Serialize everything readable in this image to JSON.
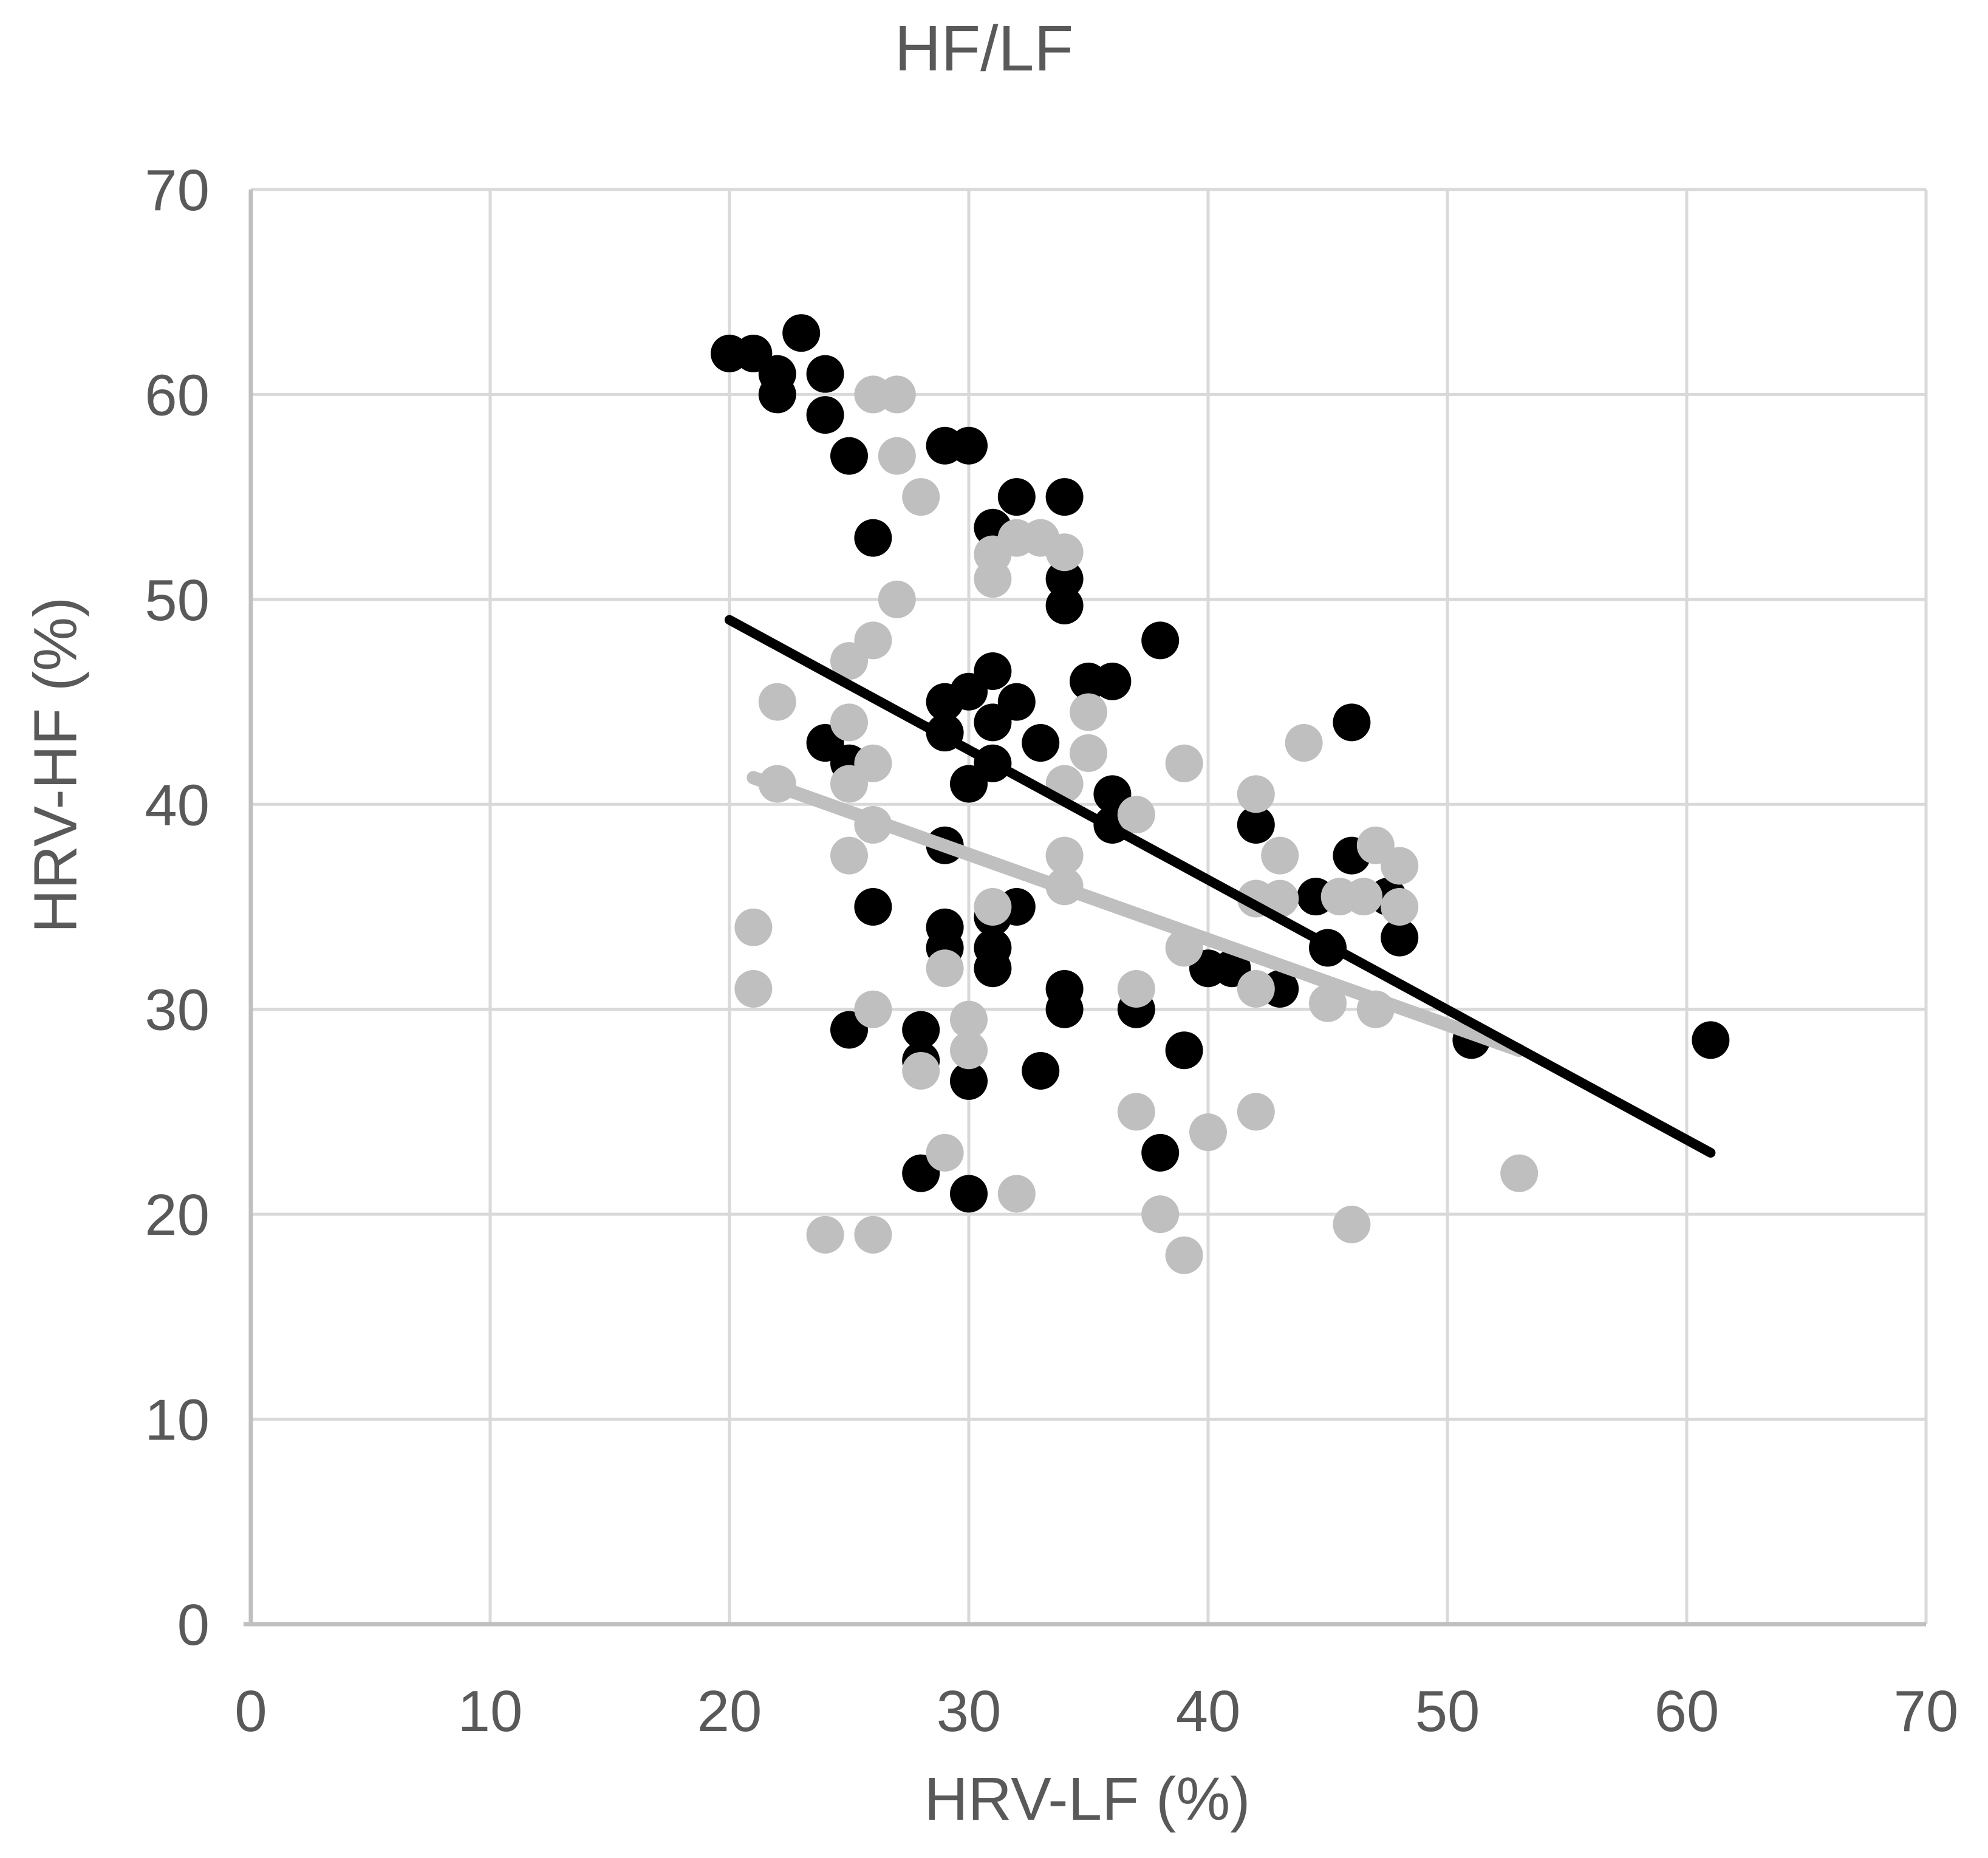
{
  "chart_data": {
    "type": "scatter",
    "title": "HF/LF",
    "xlabel": "HRV-LF (%)",
    "ylabel": "HRV-HF (%)",
    "xlim": [
      0,
      70
    ],
    "ylim": [
      0,
      70
    ],
    "xticks": [
      0,
      10,
      20,
      30,
      40,
      50,
      60,
      70
    ],
    "yticks": [
      0,
      10,
      20,
      30,
      40,
      50,
      60,
      70
    ],
    "grid": true,
    "legend": "none",
    "series": [
      {
        "name": "black-group",
        "color": "#000000",
        "marker": "circle",
        "points": [
          [
            20,
            62
          ],
          [
            21,
            62
          ],
          [
            23,
            63
          ],
          [
            22,
            61
          ],
          [
            22,
            60
          ],
          [
            24,
            61
          ],
          [
            24,
            59
          ],
          [
            25,
            57
          ],
          [
            29,
            57.5
          ],
          [
            30,
            57.5
          ],
          [
            26,
            53
          ],
          [
            32,
            55
          ],
          [
            34,
            55
          ],
          [
            31,
            53.5
          ],
          [
            34,
            51
          ],
          [
            34,
            49.7
          ],
          [
            38,
            48
          ],
          [
            31,
            46.5
          ],
          [
            30,
            45.5
          ],
          [
            29,
            45
          ],
          [
            32,
            45
          ],
          [
            29,
            43.5
          ],
          [
            31,
            44
          ],
          [
            33,
            43
          ],
          [
            31,
            42
          ],
          [
            30,
            41
          ],
          [
            24,
            43
          ],
          [
            25,
            42
          ],
          [
            35,
            46
          ],
          [
            36,
            46
          ],
          [
            36,
            40.5
          ],
          [
            36,
            39
          ],
          [
            29,
            38
          ],
          [
            26,
            35
          ],
          [
            32,
            35
          ],
          [
            31,
            34.5
          ],
          [
            29,
            34
          ],
          [
            29,
            33
          ],
          [
            31,
            33
          ],
          [
            31,
            32
          ],
          [
            40,
            32
          ],
          [
            41,
            32
          ],
          [
            43,
            31
          ],
          [
            34,
            31
          ],
          [
            34,
            30
          ],
          [
            37,
            30
          ],
          [
            25,
            29
          ],
          [
            28,
            29
          ],
          [
            39,
            28
          ],
          [
            28,
            27.5
          ],
          [
            33,
            27
          ],
          [
            30,
            26.5
          ],
          [
            38,
            23
          ],
          [
            28,
            22
          ],
          [
            30,
            21
          ],
          [
            46,
            44
          ],
          [
            42,
            39
          ],
          [
            46,
            37.5
          ],
          [
            44.5,
            35.5
          ],
          [
            47.5,
            35.5
          ],
          [
            48,
            33.5
          ],
          [
            45,
            33
          ],
          [
            51,
            28.5
          ],
          [
            61,
            28.5
          ]
        ]
      },
      {
        "name": "gray-group",
        "color": "#BFBFBF",
        "marker": "circle",
        "points": [
          [
            26,
            60
          ],
          [
            27,
            60
          ],
          [
            27,
            57
          ],
          [
            28,
            55
          ],
          [
            32,
            53
          ],
          [
            33,
            53
          ],
          [
            34,
            52.3
          ],
          [
            31,
            52.2
          ],
          [
            31,
            51
          ],
          [
            27,
            50
          ],
          [
            26,
            48
          ],
          [
            25,
            47
          ],
          [
            22,
            45
          ],
          [
            25,
            44
          ],
          [
            26,
            42
          ],
          [
            22,
            41
          ],
          [
            25,
            41
          ],
          [
            26,
            39
          ],
          [
            25,
            37.5
          ],
          [
            35,
            44.5
          ],
          [
            35,
            42.5
          ],
          [
            34,
            41
          ],
          [
            39,
            42
          ],
          [
            37,
            39.5
          ],
          [
            34,
            37.5
          ],
          [
            34,
            36
          ],
          [
            31,
            35
          ],
          [
            44,
            43
          ],
          [
            42,
            40.5
          ],
          [
            43,
            37.5
          ],
          [
            47,
            38
          ],
          [
            48,
            37
          ],
          [
            42,
            35.4
          ],
          [
            43,
            35.4
          ],
          [
            45.5,
            35.5
          ],
          [
            46.5,
            35.5
          ],
          [
            48,
            35
          ],
          [
            39,
            33
          ],
          [
            21,
            34
          ],
          [
            21,
            31
          ],
          [
            29,
            32
          ],
          [
            26,
            30
          ],
          [
            30,
            29.5
          ],
          [
            30,
            28
          ],
          [
            28,
            27
          ],
          [
            29,
            23
          ],
          [
            37,
            31
          ],
          [
            42,
            31
          ],
          [
            45,
            30.3
          ],
          [
            47,
            30
          ],
          [
            37,
            25
          ],
          [
            42,
            25
          ],
          [
            40,
            24
          ],
          [
            32,
            21
          ],
          [
            38,
            20
          ],
          [
            39,
            18
          ],
          [
            24,
            19
          ],
          [
            26,
            19
          ],
          [
            46,
            19.5
          ],
          [
            53,
            22
          ]
        ]
      }
    ],
    "trendlines": [
      {
        "series": "gray-group",
        "color": "#BFBFBF",
        "x1": 21,
        "y1": 41.3,
        "x2": 53,
        "y2": 28
      },
      {
        "series": "black-group",
        "color": "#000000",
        "x1": 20,
        "y1": 49,
        "x2": 61,
        "y2": 23
      }
    ]
  },
  "colors": {
    "background": "#FFFFFF",
    "gridline": "#D9D9D9",
    "axis_line": "#BFBFBF",
    "text": "#595959",
    "series_black": "#000000",
    "series_gray": "#BFBFBF"
  }
}
